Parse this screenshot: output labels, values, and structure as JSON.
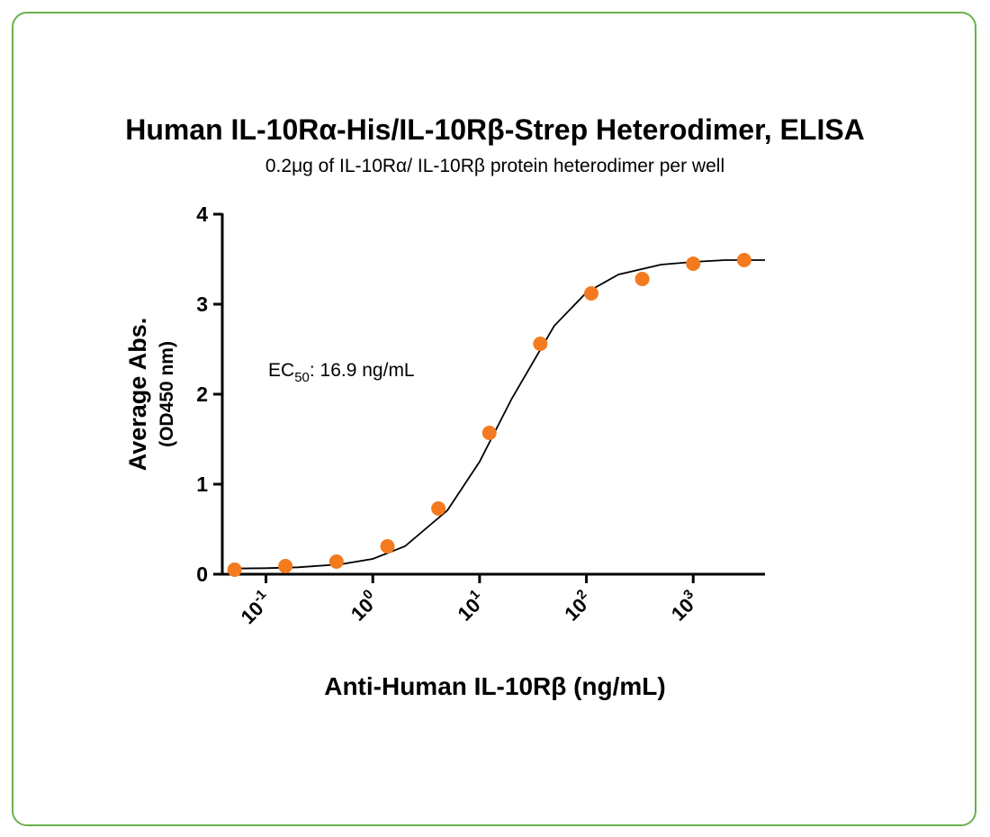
{
  "chart_data": {
    "type": "scatter",
    "title": "Human IL-10Rα-His/IL-10Rβ-Strep Heterodimer, ELISA",
    "subtitle": "0.2μg of IL-10Rα/ IL-10Rβ protein heterodimer per well",
    "x_label": "Anti-Human IL-10Rβ (ng/mL)",
    "y_label": [
      "Average Abs.",
      "(OD450 nm)"
    ],
    "annotation": {
      "text": "EC",
      "subscript": "50",
      "suffix": ": 16.9 ng/mL"
    },
    "xscale": "log",
    "xlim": [
      0.039,
      4700
    ],
    "ylim": [
      0,
      4
    ],
    "xticks": [
      {
        "value": 0.1,
        "label": "10",
        "exponent": "-1"
      },
      {
        "value": 1,
        "label": "10",
        "exponent": "0"
      },
      {
        "value": 10,
        "label": "10",
        "exponent": "1"
      },
      {
        "value": 100,
        "label": "10",
        "exponent": "2"
      },
      {
        "value": 1000,
        "label": "10",
        "exponent": "3"
      }
    ],
    "yticks": [
      0,
      1,
      2,
      3,
      4
    ],
    "points": {
      "color": "#f47a20",
      "x": [
        0.0508,
        0.152,
        0.457,
        1.372,
        4.115,
        12.35,
        37.04,
        111.1,
        333.3,
        1000,
        3000
      ],
      "values": [
        0.05,
        0.09,
        0.14,
        0.31,
        0.73,
        1.57,
        2.56,
        3.12,
        3.28,
        3.45,
        3.49
      ]
    },
    "fit_line": {
      "color": "#000000",
      "x": [
        0.05,
        0.1,
        0.2,
        0.5,
        1,
        2,
        5,
        10,
        20,
        50,
        100,
        200,
        500,
        1000,
        2000,
        4700
      ],
      "values": [
        0.063,
        0.067,
        0.077,
        0.11,
        0.17,
        0.31,
        0.71,
        1.25,
        1.95,
        2.76,
        3.13,
        3.33,
        3.44,
        3.47,
        3.49,
        3.49
      ]
    }
  }
}
